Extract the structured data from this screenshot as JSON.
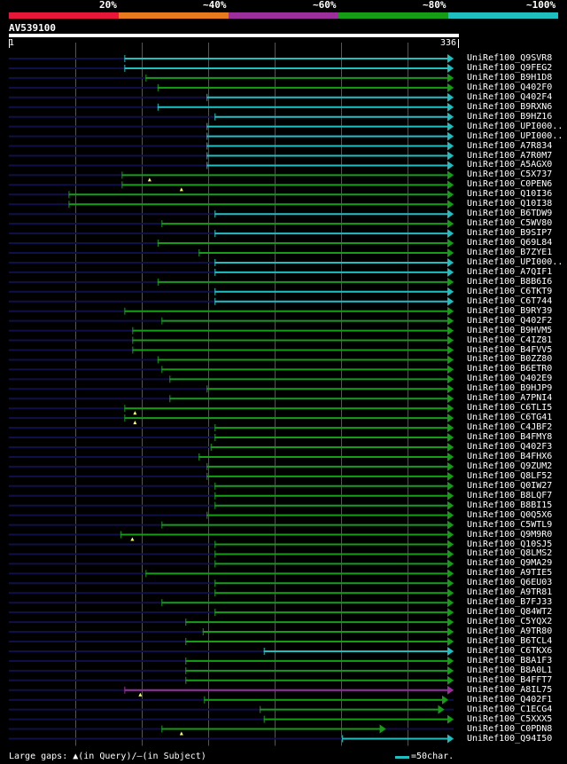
{
  "legend": {
    "labels": [
      "20%",
      "~40%",
      "~60%",
      "~80%",
      "~100%"
    ],
    "colors": [
      "#e8173a",
      "#e87a1e",
      "#9b2f9b",
      "#159d15",
      "#1fbfbf"
    ]
  },
  "query": {
    "name": "AV539100",
    "start": "1",
    "end": "336",
    "length": 336
  },
  "footer": {
    "gaps_text": "Large gaps: ▲(in Query)/–(in Subject)",
    "scale_text": "=50char."
  },
  "colors": {
    "cyan": "#1fbfbf",
    "green": "#159d15",
    "purple": "#9b2f9b",
    "track": "#101048",
    "grid": "#555555"
  },
  "hits": [
    {
      "name": "UniRef100_Q9SVR8",
      "start": 88,
      "end": 336,
      "color": "cyan",
      "arrow": true
    },
    {
      "name": "UniRef100_Q9FEG2",
      "start": 88,
      "end": 336,
      "color": "cyan",
      "arrow": true
    },
    {
      "name": "UniRef100_B9H1D8",
      "start": 104,
      "end": 336,
      "color": "green",
      "arrow": true
    },
    {
      "name": "UniRef100_Q402F0",
      "start": 113,
      "end": 336,
      "color": "green",
      "arrow": true
    },
    {
      "name": "UniRef100_Q402F4",
      "start": 150,
      "end": 336,
      "color": "cyan",
      "arrow": true
    },
    {
      "name": "UniRef100_B9RXN6",
      "start": 113,
      "end": 336,
      "color": "cyan",
      "arrow": true
    },
    {
      "name": "UniRef100_B9HZ16",
      "start": 156,
      "end": 336,
      "color": "cyan",
      "arrow": true
    },
    {
      "name": "UniRef100_UPI000..",
      "start": 150,
      "end": 336,
      "color": "cyan",
      "arrow": true
    },
    {
      "name": "UniRef100_UPI000..",
      "start": 150,
      "end": 336,
      "color": "cyan",
      "arrow": true
    },
    {
      "name": "UniRef100_A7R834",
      "start": 150,
      "end": 336,
      "color": "cyan",
      "arrow": true
    },
    {
      "name": "UniRef100_A7R0M7",
      "start": 150,
      "end": 336,
      "color": "cyan",
      "arrow": true
    },
    {
      "name": "UniRef100_A5AGX0",
      "start": 150,
      "end": 336,
      "color": "cyan",
      "arrow": true
    },
    {
      "name": "UniRef100_C5X737",
      "start": 86,
      "end": 336,
      "color": "green",
      "arrow": true,
      "gaps": [
        107
      ]
    },
    {
      "name": "UniRef100_C0PEN6",
      "start": 86,
      "end": 336,
      "color": "green",
      "arrow": true,
      "gaps": [
        131
      ]
    },
    {
      "name": "UniRef100_Q10I36",
      "start": 46,
      "end": 336,
      "color": "green",
      "arrow": true
    },
    {
      "name": "UniRef100_Q10I38",
      "start": 46,
      "end": 336,
      "color": "green",
      "arrow": true
    },
    {
      "name": "UniRef100_B6TDW9",
      "start": 156,
      "end": 336,
      "color": "cyan",
      "arrow": true
    },
    {
      "name": "UniRef100_C5WV80",
      "start": 116,
      "end": 336,
      "color": "green",
      "arrow": true
    },
    {
      "name": "UniRef100_B9SIP7",
      "start": 156,
      "end": 336,
      "color": "cyan",
      "arrow": true
    },
    {
      "name": "UniRef100_Q69L84",
      "start": 113,
      "end": 336,
      "color": "green",
      "arrow": true
    },
    {
      "name": "UniRef100_B7ZYE1",
      "start": 144,
      "end": 336,
      "color": "green",
      "arrow": true
    },
    {
      "name": "UniRef100_UPI000..",
      "start": 156,
      "end": 336,
      "color": "cyan",
      "arrow": true
    },
    {
      "name": "UniRef100_A7QIF1",
      "start": 156,
      "end": 336,
      "color": "cyan",
      "arrow": true
    },
    {
      "name": "UniRef100_B8B6I6",
      "start": 113,
      "end": 336,
      "color": "green",
      "arrow": true
    },
    {
      "name": "UniRef100_C6TKT9",
      "start": 156,
      "end": 336,
      "color": "cyan",
      "arrow": true
    },
    {
      "name": "UniRef100_C6T744",
      "start": 156,
      "end": 336,
      "color": "cyan",
      "arrow": true
    },
    {
      "name": "UniRef100_B9RY39",
      "start": 88,
      "end": 336,
      "color": "green",
      "arrow": true
    },
    {
      "name": "UniRef100_Q402F2",
      "start": 116,
      "end": 336,
      "color": "green",
      "arrow": true
    },
    {
      "name": "UniRef100_B9HVM5",
      "start": 94,
      "end": 336,
      "color": "green",
      "arrow": true
    },
    {
      "name": "UniRef100_C4IZ81",
      "start": 94,
      "end": 336,
      "color": "green",
      "arrow": true
    },
    {
      "name": "UniRef100_B4FVV5",
      "start": 94,
      "end": 336,
      "color": "green",
      "arrow": true
    },
    {
      "name": "UniRef100_B0ZZ80",
      "start": 113,
      "end": 336,
      "color": "green",
      "arrow": true
    },
    {
      "name": "UniRef100_B6ETR0",
      "start": 116,
      "end": 336,
      "color": "green",
      "arrow": true
    },
    {
      "name": "UniRef100_Q402E9",
      "start": 122,
      "end": 336,
      "color": "green",
      "arrow": true
    },
    {
      "name": "UniRef100_B9HJP9",
      "start": 150,
      "end": 336,
      "color": "green",
      "arrow": true
    },
    {
      "name": "UniRef100_A7PNI4",
      "start": 122,
      "end": 336,
      "color": "green",
      "arrow": true
    },
    {
      "name": "UniRef100_C6TLI5",
      "start": 88,
      "end": 336,
      "color": "green",
      "arrow": true,
      "gaps": [
        96
      ]
    },
    {
      "name": "UniRef100_C6TG41",
      "start": 88,
      "end": 336,
      "color": "green",
      "arrow": true,
      "gaps": [
        96
      ]
    },
    {
      "name": "UniRef100_C4JBF2",
      "start": 156,
      "end": 336,
      "color": "green",
      "arrow": true
    },
    {
      "name": "UniRef100_B4FMY8",
      "start": 156,
      "end": 336,
      "color": "green",
      "arrow": true
    },
    {
      "name": "UniRef100_Q402F3",
      "start": 153,
      "end": 336,
      "color": "green",
      "arrow": true
    },
    {
      "name": "UniRef100_B4FHX6",
      "start": 144,
      "end": 336,
      "color": "green",
      "arrow": true
    },
    {
      "name": "UniRef100_Q9ZUM2",
      "start": 150,
      "end": 336,
      "color": "green",
      "arrow": true
    },
    {
      "name": "UniRef100_Q8LF52",
      "start": 150,
      "end": 336,
      "color": "green",
      "arrow": true
    },
    {
      "name": "UniRef100_Q0IW27",
      "start": 156,
      "end": 336,
      "color": "green",
      "arrow": true
    },
    {
      "name": "UniRef100_B8LQF7",
      "start": 156,
      "end": 336,
      "color": "green",
      "arrow": true
    },
    {
      "name": "UniRef100_B8BI15",
      "start": 156,
      "end": 336,
      "color": "green",
      "arrow": true
    },
    {
      "name": "UniRef100_Q0Q5X6",
      "start": 150,
      "end": 336,
      "color": "green",
      "arrow": true
    },
    {
      "name": "UniRef100_C5WTL9",
      "start": 116,
      "end": 336,
      "color": "green",
      "arrow": true
    },
    {
      "name": "UniRef100_Q9M9R0",
      "start": 85,
      "end": 336,
      "color": "green",
      "arrow": true,
      "gaps": [
        94
      ]
    },
    {
      "name": "UniRef100_Q10SJ5",
      "start": 156,
      "end": 336,
      "color": "green",
      "arrow": true
    },
    {
      "name": "UniRef100_Q8LMS2",
      "start": 156,
      "end": 336,
      "color": "green",
      "arrow": true
    },
    {
      "name": "UniRef100_Q9MA29",
      "start": 156,
      "end": 336,
      "color": "green",
      "arrow": true
    },
    {
      "name": "UniRef100_A9TIE5",
      "start": 104,
      "end": 336,
      "color": "green",
      "arrow": true
    },
    {
      "name": "UniRef100_Q6EU03",
      "start": 156,
      "end": 336,
      "color": "green",
      "arrow": true
    },
    {
      "name": "UniRef100_A9TR81",
      "start": 156,
      "end": 336,
      "color": "green",
      "arrow": true
    },
    {
      "name": "UniRef100_B7FJ33",
      "start": 116,
      "end": 336,
      "color": "green",
      "arrow": true
    },
    {
      "name": "UniRef100_Q84WT2",
      "start": 156,
      "end": 336,
      "color": "green",
      "arrow": true
    },
    {
      "name": "UniRef100_C5YQX2",
      "start": 134,
      "end": 336,
      "color": "green",
      "arrow": true
    },
    {
      "name": "UniRef100_A9TR80",
      "start": 147,
      "end": 336,
      "color": "green",
      "arrow": true
    },
    {
      "name": "UniRef100_B6TCL4",
      "start": 134,
      "end": 336,
      "color": "green",
      "arrow": true
    },
    {
      "name": "UniRef100_C6TKX6",
      "start": 193,
      "end": 336,
      "color": "cyan",
      "arrow": true
    },
    {
      "name": "UniRef100_B8A1F3",
      "start": 134,
      "end": 336,
      "color": "green",
      "arrow": true
    },
    {
      "name": "UniRef100_B8A0L1",
      "start": 134,
      "end": 336,
      "color": "green",
      "arrow": true
    },
    {
      "name": "UniRef100_B4FFT7",
      "start": 134,
      "end": 336,
      "color": "green",
      "arrow": true
    },
    {
      "name": "UniRef100_A8IL75",
      "start": 88,
      "end": 336,
      "color": "purple",
      "arrow": true,
      "gaps": [
        100
      ]
    },
    {
      "name": "UniRef100_Q402F1",
      "start": 148,
      "end": 332,
      "color": "green",
      "arrow": true
    },
    {
      "name": "UniRef100_C1ECG4",
      "start": 190,
      "end": 329,
      "color": "green",
      "arrow": true
    },
    {
      "name": "UniRef100_C5XXX5",
      "start": 193,
      "end": 336,
      "color": "green",
      "arrow": true
    },
    {
      "name": "UniRef100_C0PDN8",
      "start": 116,
      "end": 285,
      "color": "green",
      "arrow": true,
      "gaps": [
        131
      ]
    },
    {
      "name": "UniRef100_Q94I50",
      "start": 252,
      "end": 336,
      "color": "cyan",
      "arrow": true
    }
  ]
}
